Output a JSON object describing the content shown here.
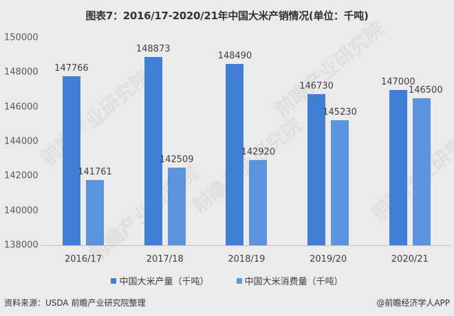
{
  "title": "图表7：2016/17-2020/21年中国大米产销情况(单位：千吨)",
  "watermark": "前瞻产业研究院",
  "colors": {
    "production": "#3f7fd6",
    "consumption": "#5b93dd",
    "background": "#ebebeb"
  },
  "chart_data": {
    "type": "bar",
    "title": "图表7：2016/17-2020/21年中国大米产销情况(单位：千吨)",
    "xlabel": "",
    "ylabel": "",
    "categories": [
      "2016/17",
      "2017/18",
      "2018/19",
      "2019/20",
      "2020/21"
    ],
    "series": [
      {
        "name": "中国大米产量（千吨）",
        "values": [
          147766,
          148873,
          148490,
          146730,
          147000
        ]
      },
      {
        "name": "中国大米消费量（千吨）",
        "values": [
          141761,
          142509,
          142920,
          145230,
          146500
        ]
      }
    ],
    "ylim": [
      138000,
      150000
    ],
    "yticks": [
      "150000",
      "148000",
      "146000",
      "144000",
      "142000",
      "140000",
      "138000"
    ],
    "grid": false,
    "legend_position": "bottom",
    "data_labels": true
  },
  "legend": {
    "production": "中国大米产量（千吨）",
    "consumption": "中国大米消费量（千吨）"
  },
  "footer": {
    "source": "资料来源：USDA 前瞻产业研究院整理",
    "credit": "@前瞻经济学人APP"
  }
}
